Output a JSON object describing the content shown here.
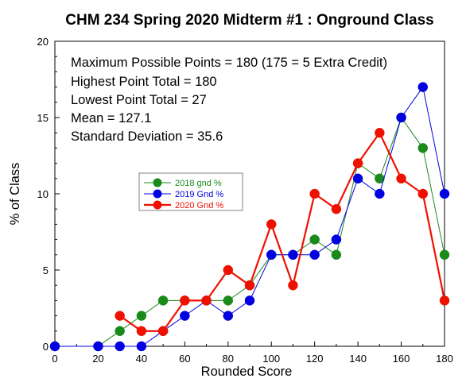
{
  "chart_data": {
    "type": "line",
    "title": "CHM 234 Spring 2020 Midterm #1 : Onground Class",
    "xlabel": "Rounded Score",
    "ylabel": "% of Class",
    "xlim": [
      0,
      180
    ],
    "ylim": [
      0,
      20
    ],
    "xticks": [
      0,
      20,
      40,
      60,
      80,
      100,
      120,
      140,
      160,
      180
    ],
    "yticks": [
      0,
      5,
      10,
      15,
      20
    ],
    "grid": false,
    "legend_position": "left-center",
    "annotations": [
      "Maximum Possible Points = 180 (175 = 5 Extra Credit)",
      "Highest Point Total = 180",
      "Lowest Point Total = 27",
      "Mean = 127.1",
      "Standard Deviation = 35.6"
    ],
    "series": [
      {
        "name": "2018 gnd %",
        "color": "#1a8a1a",
        "points": [
          [
            0,
            0
          ],
          [
            20,
            0
          ],
          [
            30,
            1
          ],
          [
            40,
            2
          ],
          [
            50,
            3
          ],
          [
            60,
            3
          ],
          [
            70,
            3
          ],
          [
            80,
            3
          ],
          [
            90,
            4
          ],
          [
            100,
            6
          ],
          [
            110,
            6
          ],
          [
            120,
            7
          ],
          [
            130,
            6
          ],
          [
            140,
            12
          ],
          [
            150,
            11
          ],
          [
            160,
            15
          ],
          [
            170,
            13
          ],
          [
            180,
            6
          ]
        ]
      },
      {
        "name": "2019 Gnd %",
        "color": "#0000e0",
        "points": [
          [
            0,
            0
          ],
          [
            20,
            0
          ],
          [
            30,
            0
          ],
          [
            40,
            0
          ],
          [
            50,
            1
          ],
          [
            60,
            2
          ],
          [
            70,
            3
          ],
          [
            80,
            2
          ],
          [
            90,
            3
          ],
          [
            100,
            6
          ],
          [
            110,
            6
          ],
          [
            120,
            6
          ],
          [
            130,
            7
          ],
          [
            140,
            11
          ],
          [
            150,
            10
          ],
          [
            160,
            15
          ],
          [
            170,
            17
          ],
          [
            180,
            10
          ]
        ]
      },
      {
        "name": "2020 Gnd %",
        "color": "#ee1100",
        "points": [
          [
            30,
            2
          ],
          [
            40,
            1
          ],
          [
            50,
            1
          ],
          [
            60,
            3
          ],
          [
            70,
            3
          ],
          [
            80,
            5
          ],
          [
            90,
            4
          ],
          [
            100,
            8
          ],
          [
            110,
            4
          ],
          [
            120,
            10
          ],
          [
            130,
            9
          ],
          [
            140,
            12
          ],
          [
            150,
            14
          ],
          [
            160,
            11
          ],
          [
            170,
            10
          ],
          [
            180,
            3
          ]
        ]
      }
    ]
  }
}
